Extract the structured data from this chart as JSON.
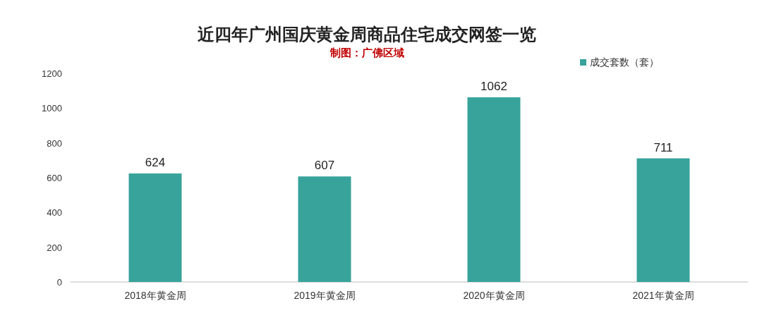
{
  "chart_data": {
    "type": "bar",
    "title": "近四年广州国庆黄金周商品住宅成交网签一览",
    "subtitle": "制图：广佛区域",
    "categories": [
      "2018年黄金周",
      "2019年黄金周",
      "2020年黄金周",
      "2021年黄金周"
    ],
    "series": [
      {
        "name": "成交套数（套）",
        "color": "#38a39b",
        "values": [
          624,
          607,
          1062,
          711
        ]
      }
    ],
    "ylim": [
      0,
      1200
    ],
    "yticks": [
      0,
      200,
      400,
      600,
      800,
      1000,
      1200
    ],
    "data_labels": true,
    "legend": "top right"
  }
}
